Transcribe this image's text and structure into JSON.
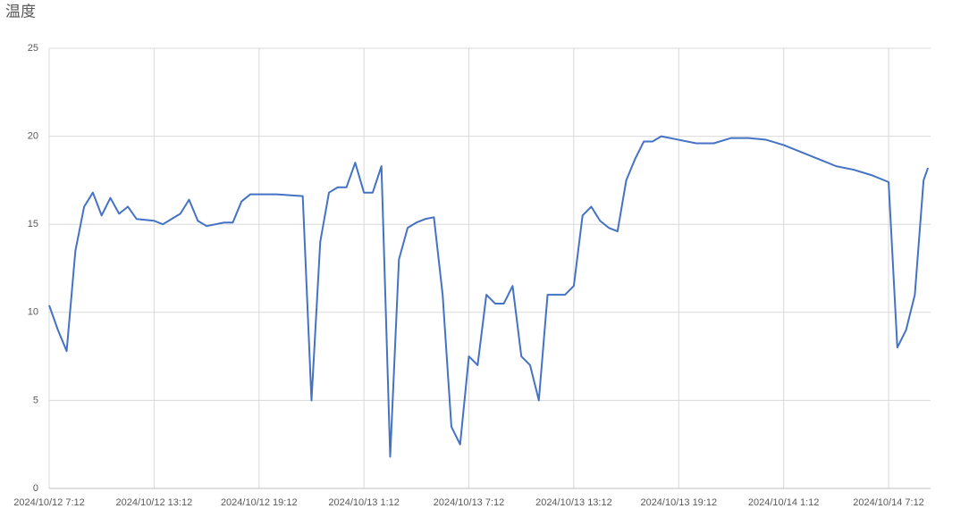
{
  "chart_data": {
    "type": "line",
    "title": "温度",
    "x": [
      "2024/10/12 7:12",
      "2024/10/12 7:42",
      "2024/10/12 8:12",
      "2024/10/12 8:42",
      "2024/10/12 9:12",
      "2024/10/12 9:42",
      "2024/10/12 10:12",
      "2024/10/12 10:42",
      "2024/10/12 11:12",
      "2024/10/12 11:42",
      "2024/10/12 12:12",
      "2024/10/12 13:12",
      "2024/10/12 13:42",
      "2024/10/12 14:12",
      "2024/10/12 14:42",
      "2024/10/12 15:12",
      "2024/10/12 15:42",
      "2024/10/12 16:12",
      "2024/10/12 17:12",
      "2024/10/12 17:42",
      "2024/10/12 18:12",
      "2024/10/12 18:42",
      "2024/10/12 20:12",
      "2024/10/12 21:42",
      "2024/10/12 22:12",
      "2024/10/12 22:42",
      "2024/10/12 23:12",
      "2024/10/12 23:42",
      "2024/10/13 0:12",
      "2024/10/13 0:42",
      "2024/10/13 1:12",
      "2024/10/13 1:42",
      "2024/10/13 2:12",
      "2024/10/13 2:42",
      "2024/10/13 3:12",
      "2024/10/13 3:42",
      "2024/10/13 4:12",
      "2024/10/13 4:42",
      "2024/10/13 5:12",
      "2024/10/13 5:42",
      "2024/10/13 6:12",
      "2024/10/13 6:42",
      "2024/10/13 7:12",
      "2024/10/13 7:42",
      "2024/10/13 8:12",
      "2024/10/13 8:42",
      "2024/10/13 9:12",
      "2024/10/13 9:42",
      "2024/10/13 10:12",
      "2024/10/13 10:42",
      "2024/10/13 11:12",
      "2024/10/13 11:42",
      "2024/10/13 12:12",
      "2024/10/13 12:42",
      "2024/10/13 13:12",
      "2024/10/13 13:42",
      "2024/10/13 14:12",
      "2024/10/13 14:42",
      "2024/10/13 15:12",
      "2024/10/13 15:42",
      "2024/10/13 16:12",
      "2024/10/13 16:42",
      "2024/10/13 17:12",
      "2024/10/13 17:42",
      "2024/10/13 18:12",
      "2024/10/13 19:12",
      "2024/10/13 20:12",
      "2024/10/13 21:12",
      "2024/10/13 22:12",
      "2024/10/13 23:12",
      "2024/10/14 0:12",
      "2024/10/14 1:12",
      "2024/10/14 2:12",
      "2024/10/14 3:12",
      "2024/10/14 4:12",
      "2024/10/14 5:12",
      "2024/10/14 6:12",
      "2024/10/14 7:12",
      "2024/10/14 7:42",
      "2024/10/14 8:12",
      "2024/10/14 8:42",
      "2024/10/14 9:12",
      "2024/10/14 9:27"
    ],
    "series": [
      {
        "name": "温度",
        "color": "#4472c4",
        "values": [
          10.4,
          9.0,
          7.8,
          13.5,
          16.0,
          16.8,
          15.5,
          16.5,
          15.6,
          16.0,
          15.3,
          15.2,
          15.0,
          15.3,
          15.6,
          16.4,
          15.2,
          14.9,
          15.1,
          15.1,
          16.3,
          16.7,
          16.7,
          16.6,
          5.0,
          14.0,
          16.8,
          17.1,
          17.1,
          18.5,
          16.8,
          16.8,
          18.3,
          1.8,
          13.0,
          14.8,
          15.1,
          15.3,
          15.4,
          11.0,
          3.5,
          2.5,
          7.5,
          7.0,
          11.0,
          10.5,
          10.5,
          11.5,
          7.5,
          7.0,
          5.0,
          11.0,
          11.0,
          11.0,
          11.5,
          15.5,
          16.0,
          15.2,
          14.8,
          14.6,
          17.5,
          18.7,
          19.7,
          19.7,
          20.0,
          19.8,
          19.6,
          19.6,
          19.9,
          19.9,
          19.8,
          19.5,
          19.1,
          18.7,
          18.3,
          18.1,
          17.8,
          17.4,
          8.0,
          9.0,
          11.0,
          17.5,
          18.2
        ]
      }
    ],
    "xlim": [
      "2024/10/12 7:12",
      "2024/10/14 9:36"
    ],
    "xticks": [
      "2024/10/12 7:12",
      "2024/10/12 13:12",
      "2024/10/12 19:12",
      "2024/10/13 1:12",
      "2024/10/13 7:12",
      "2024/10/13 13:12",
      "2024/10/13 19:12",
      "2024/10/14 1:12",
      "2024/10/14 7:12"
    ],
    "ylim": [
      0,
      25
    ],
    "yticks": [
      0,
      5,
      10,
      15,
      20,
      25
    ],
    "grid": true
  }
}
